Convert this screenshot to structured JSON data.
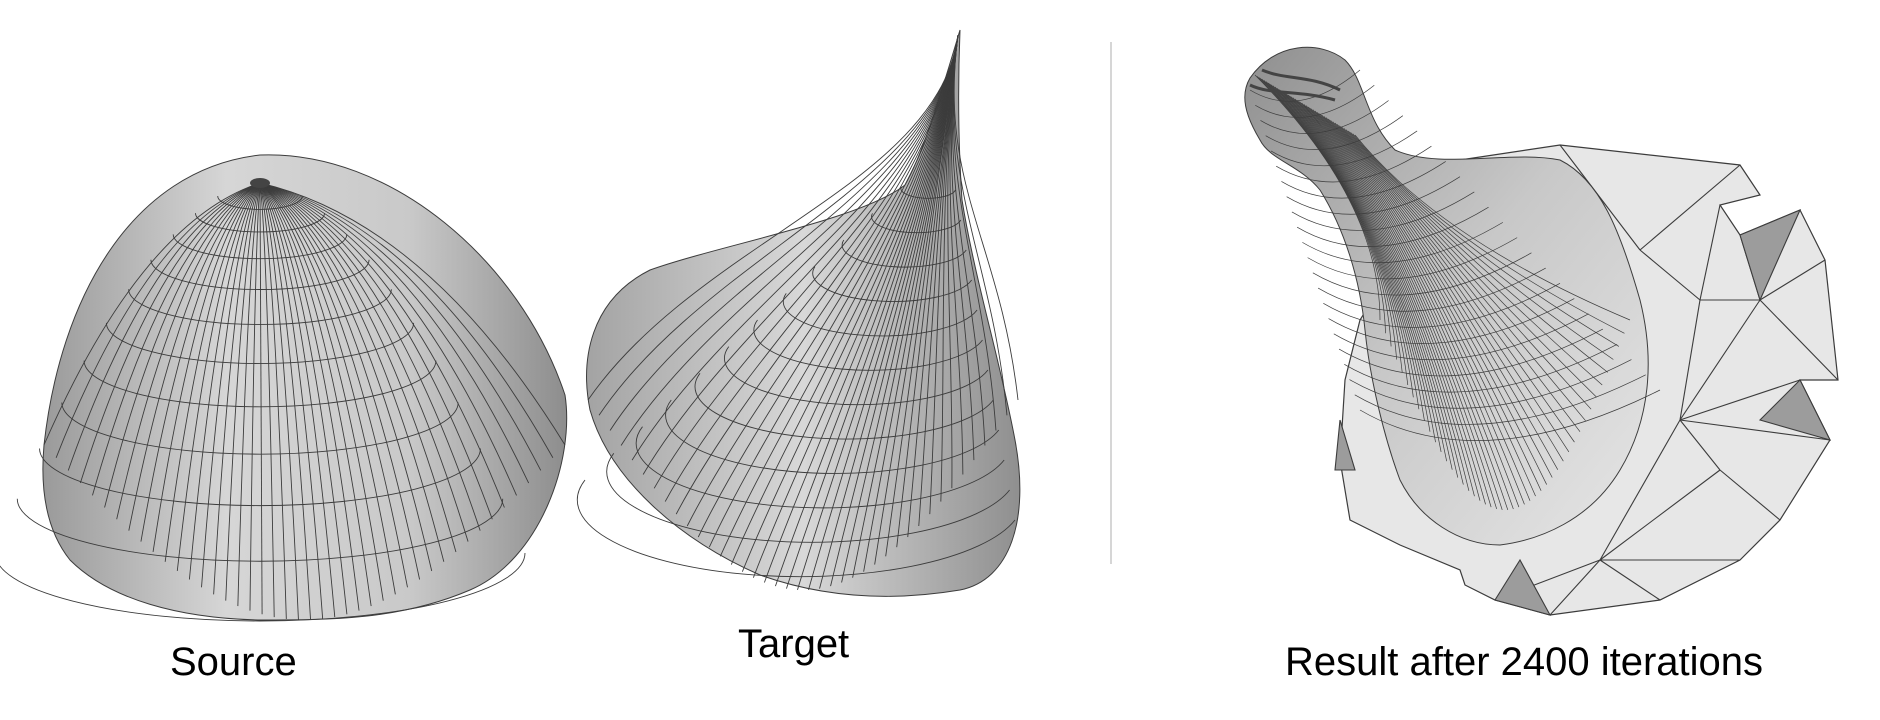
{
  "figure": {
    "panels": [
      {
        "id": "source",
        "caption": "Source"
      },
      {
        "id": "target",
        "caption": "Target"
      },
      {
        "id": "result",
        "caption": "Result after 2400 iterations"
      }
    ],
    "colors": {
      "mesh_fill": "#cfcfcf",
      "mesh_fill_light": "#e4e4e4",
      "mesh_line": "#3c3c3c",
      "divider": "#d6d6d6"
    }
  }
}
